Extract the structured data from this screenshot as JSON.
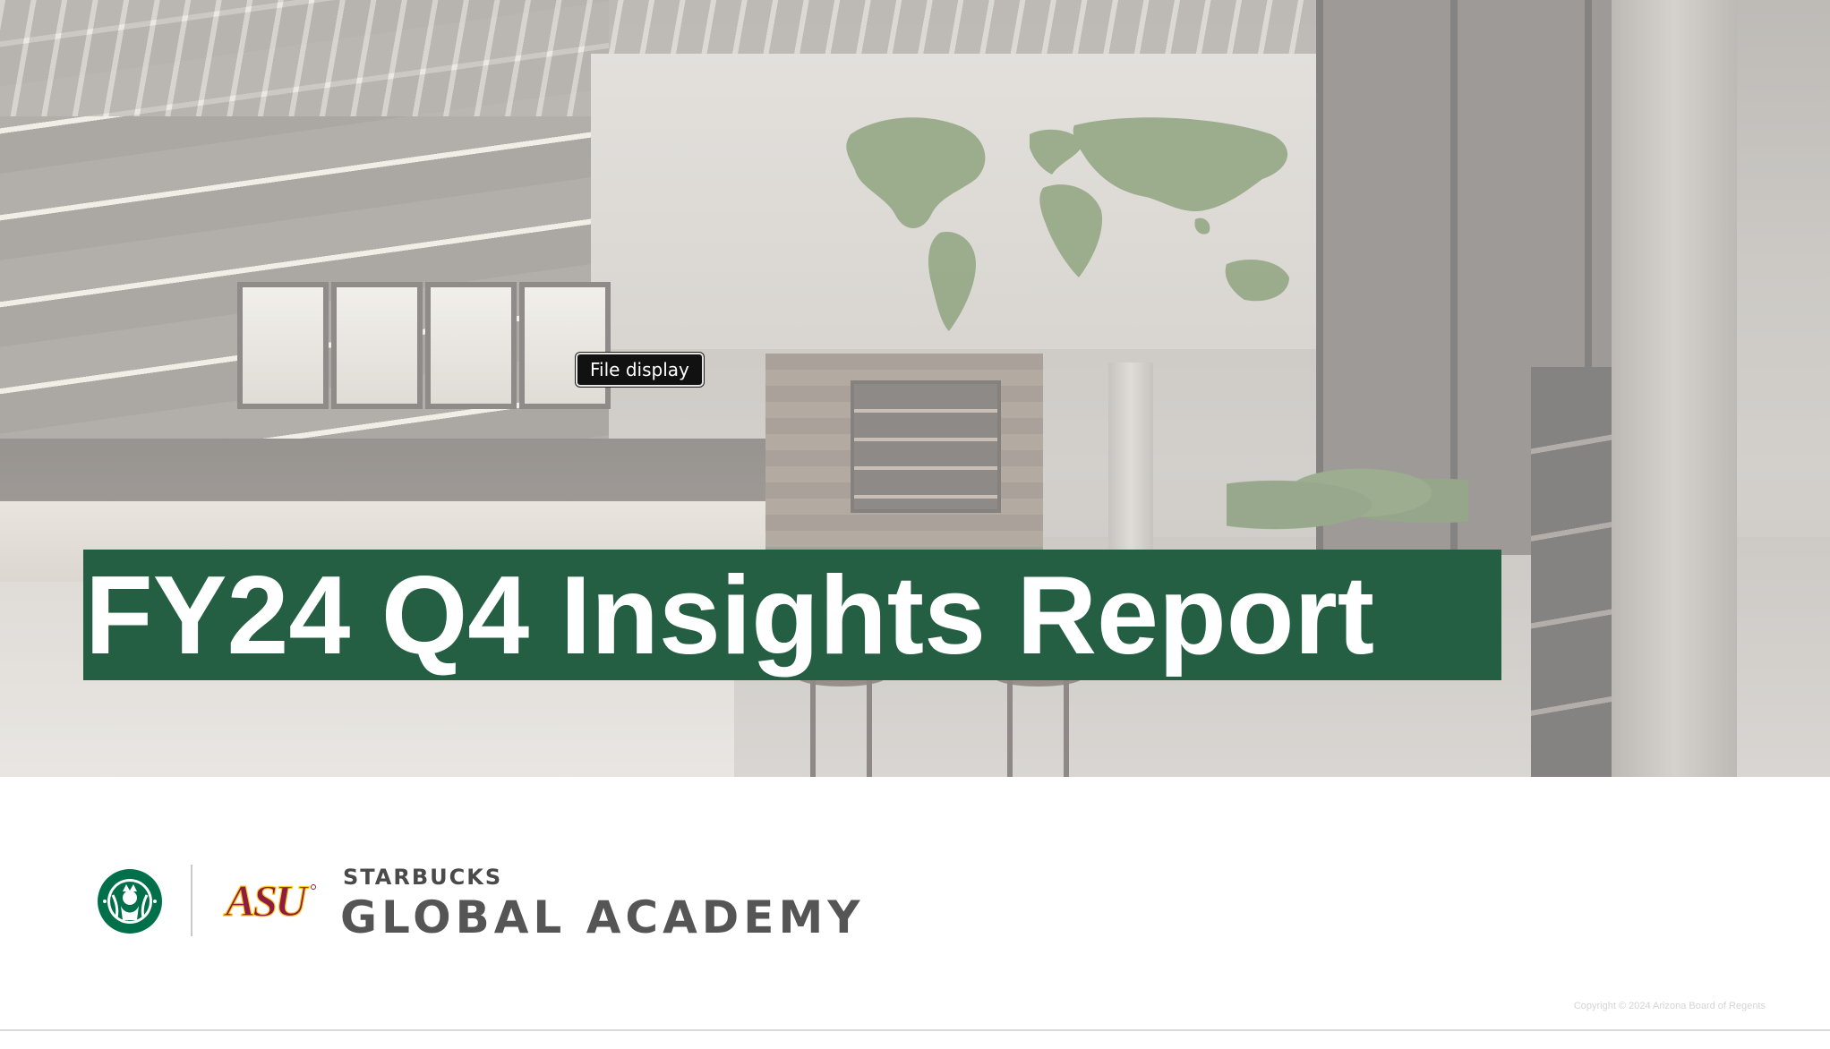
{
  "tooltip": {
    "label": "File display"
  },
  "slide": {
    "title": "FY24 Q4 Insights Report",
    "title_banner_color": "#245f43",
    "background_photo_icon": "starbucks-store-interior-photo"
  },
  "branding": {
    "starbucks_logo_icon": "starbucks-siren-logo",
    "asu_logo_icon": "asu-logo",
    "asu_logo_text": "ASU",
    "academy_kicker": "STARBUCKS",
    "academy_name": "GLOBAL ACADEMY",
    "starbucks_green": "#00704a",
    "asu_maroon": "#8c1d40",
    "asu_gold": "#ffc627"
  },
  "footer": {
    "copyright": "Copyright © 2024 Arizona Board of Regents"
  }
}
